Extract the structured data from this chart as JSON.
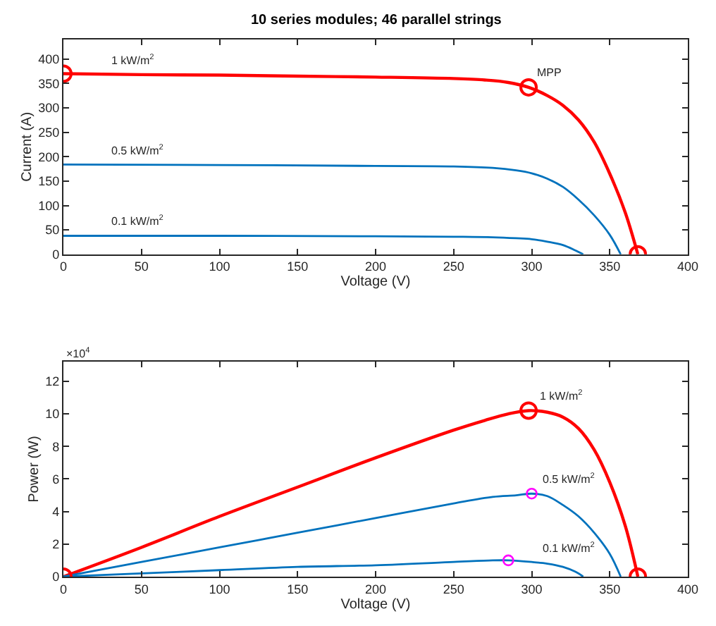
{
  "chart_data": [
    {
      "type": "line",
      "title": "10 series modules; 46 parallel strings",
      "xlabel": "Voltage (V)",
      "ylabel": "Current (A)",
      "xlim": [
        0,
        400
      ],
      "xticks": [
        0,
        50,
        100,
        150,
        200,
        250,
        300,
        350,
        400
      ],
      "ylim": [
        0,
        440
      ],
      "yticks": [
        0,
        50,
        100,
        150,
        200,
        250,
        300,
        350,
        400
      ],
      "series": [
        {
          "color": "#ff0000",
          "x": [
            0,
            50,
            100,
            150,
            200,
            250,
            270,
            285,
            298,
            310,
            320,
            330,
            340,
            350,
            360,
            368
          ],
          "values": [
            370,
            368,
            367,
            365,
            363,
            360,
            357,
            352,
            342,
            325,
            305,
            275,
            230,
            165,
            85,
            0
          ],
          "marker": "none",
          "line_style": "solid"
        },
        {
          "color": "#0072bd",
          "x": [
            0,
            100,
            200,
            250,
            275,
            290,
            300,
            310,
            320,
            330,
            340,
            350,
            357
          ],
          "values": [
            184,
            183,
            181,
            180,
            177,
            172,
            166,
            155,
            138,
            112,
            80,
            40,
            0
          ],
          "marker": "none",
          "line_style": "solid"
        },
        {
          "color": "#0072bd",
          "x": [
            0,
            100,
            200,
            250,
            275,
            290,
            300,
            310,
            320,
            328,
            333
          ],
          "values": [
            38,
            38,
            37,
            36,
            35,
            33,
            31,
            26,
            19,
            8,
            0
          ],
          "marker": "none",
          "line_style": "solid"
        },
        {
          "type": "scatter",
          "color": "#ff0000",
          "x": [
            0,
            298,
            368
          ],
          "values": [
            370,
            342,
            0
          ],
          "marker": "circle"
        }
      ],
      "annotations": [
        {
          "text": "1 kW/m$^{2}$",
          "x": 25,
          "y": 369
        },
        {
          "text": "MPP",
          "x": 298,
          "y": 342
        },
        {
          "text": "0.5 kW/m$^{2}$",
          "x": 25,
          "y": 184
        },
        {
          "text": "0.1 kW/m$^{2}$",
          "x": 25,
          "y": 38
        }
      ]
    },
    {
      "type": "line",
      "xlabel": "Voltage (V)",
      "ylabel": "Power (W)",
      "xlim": [
        0,
        400
      ],
      "xticks": [
        0,
        50,
        100,
        150,
        200,
        250,
        300,
        350,
        400
      ],
      "ylim": [
        0,
        13.2
      ],
      "yticks": [
        0,
        2,
        4,
        6,
        8,
        10,
        12
      ],
      "series": [
        {
          "color": "#ff0000",
          "x": [
            0,
            50,
            100,
            150,
            200,
            250,
            270,
            285,
            298,
            310,
            320,
            330,
            340,
            350,
            360,
            368
          ],
          "values": [
            0,
            1.8,
            3.7,
            5.5,
            7.3,
            9.0,
            9.6,
            10.0,
            10.2,
            10.1,
            9.8,
            9.1,
            7.8,
            5.8,
            3.1,
            0
          ],
          "marker": "none",
          "line_style": "solid"
        },
        {
          "color": "#0072bd",
          "x": [
            0,
            50,
            100,
            150,
            200,
            250,
            275,
            290,
            300,
            310,
            320,
            330,
            340,
            350,
            357
          ],
          "values": [
            0,
            0.9,
            1.8,
            2.7,
            3.6,
            4.5,
            4.9,
            5.0,
            5.1,
            4.95,
            4.4,
            3.7,
            2.7,
            1.4,
            0
          ],
          "marker": "none",
          "line_style": "solid"
        },
        {
          "color": "#0072bd",
          "x": [
            0,
            50,
            100,
            150,
            200,
            250,
            275,
            285,
            300,
            310,
            320,
            328,
            333
          ],
          "values": [
            0,
            0.2,
            0.4,
            0.6,
            0.7,
            0.9,
            1.0,
            1.0,
            0.9,
            0.8,
            0.6,
            0.3,
            0
          ],
          "marker": "none",
          "line_style": "solid"
        },
        {
          "type": "scatter",
          "color": "#ff0000",
          "x": [
            0,
            298,
            368
          ],
          "values": [
            0,
            10.2,
            0
          ],
          "marker": "circle"
        },
        {
          "type": "scatter",
          "color": "#ff00ff",
          "x": [
            300,
            285
          ],
          "values": [
            5.1,
            1.0
          ],
          "marker": "circle"
        }
      ],
      "annotations": [
        "×10$^{4}$",
        {
          "text": "1 kW/m$^{2}$",
          "x": 300,
          "y": 10.2
        },
        {
          "text": "0.5 kW/m$^{2}$",
          "x": 302,
          "y": 5.1
        },
        {
          "text": "0.1 kW/m$^{2}$",
          "x": 302,
          "y": 0.9
        }
      ]
    }
  ]
}
